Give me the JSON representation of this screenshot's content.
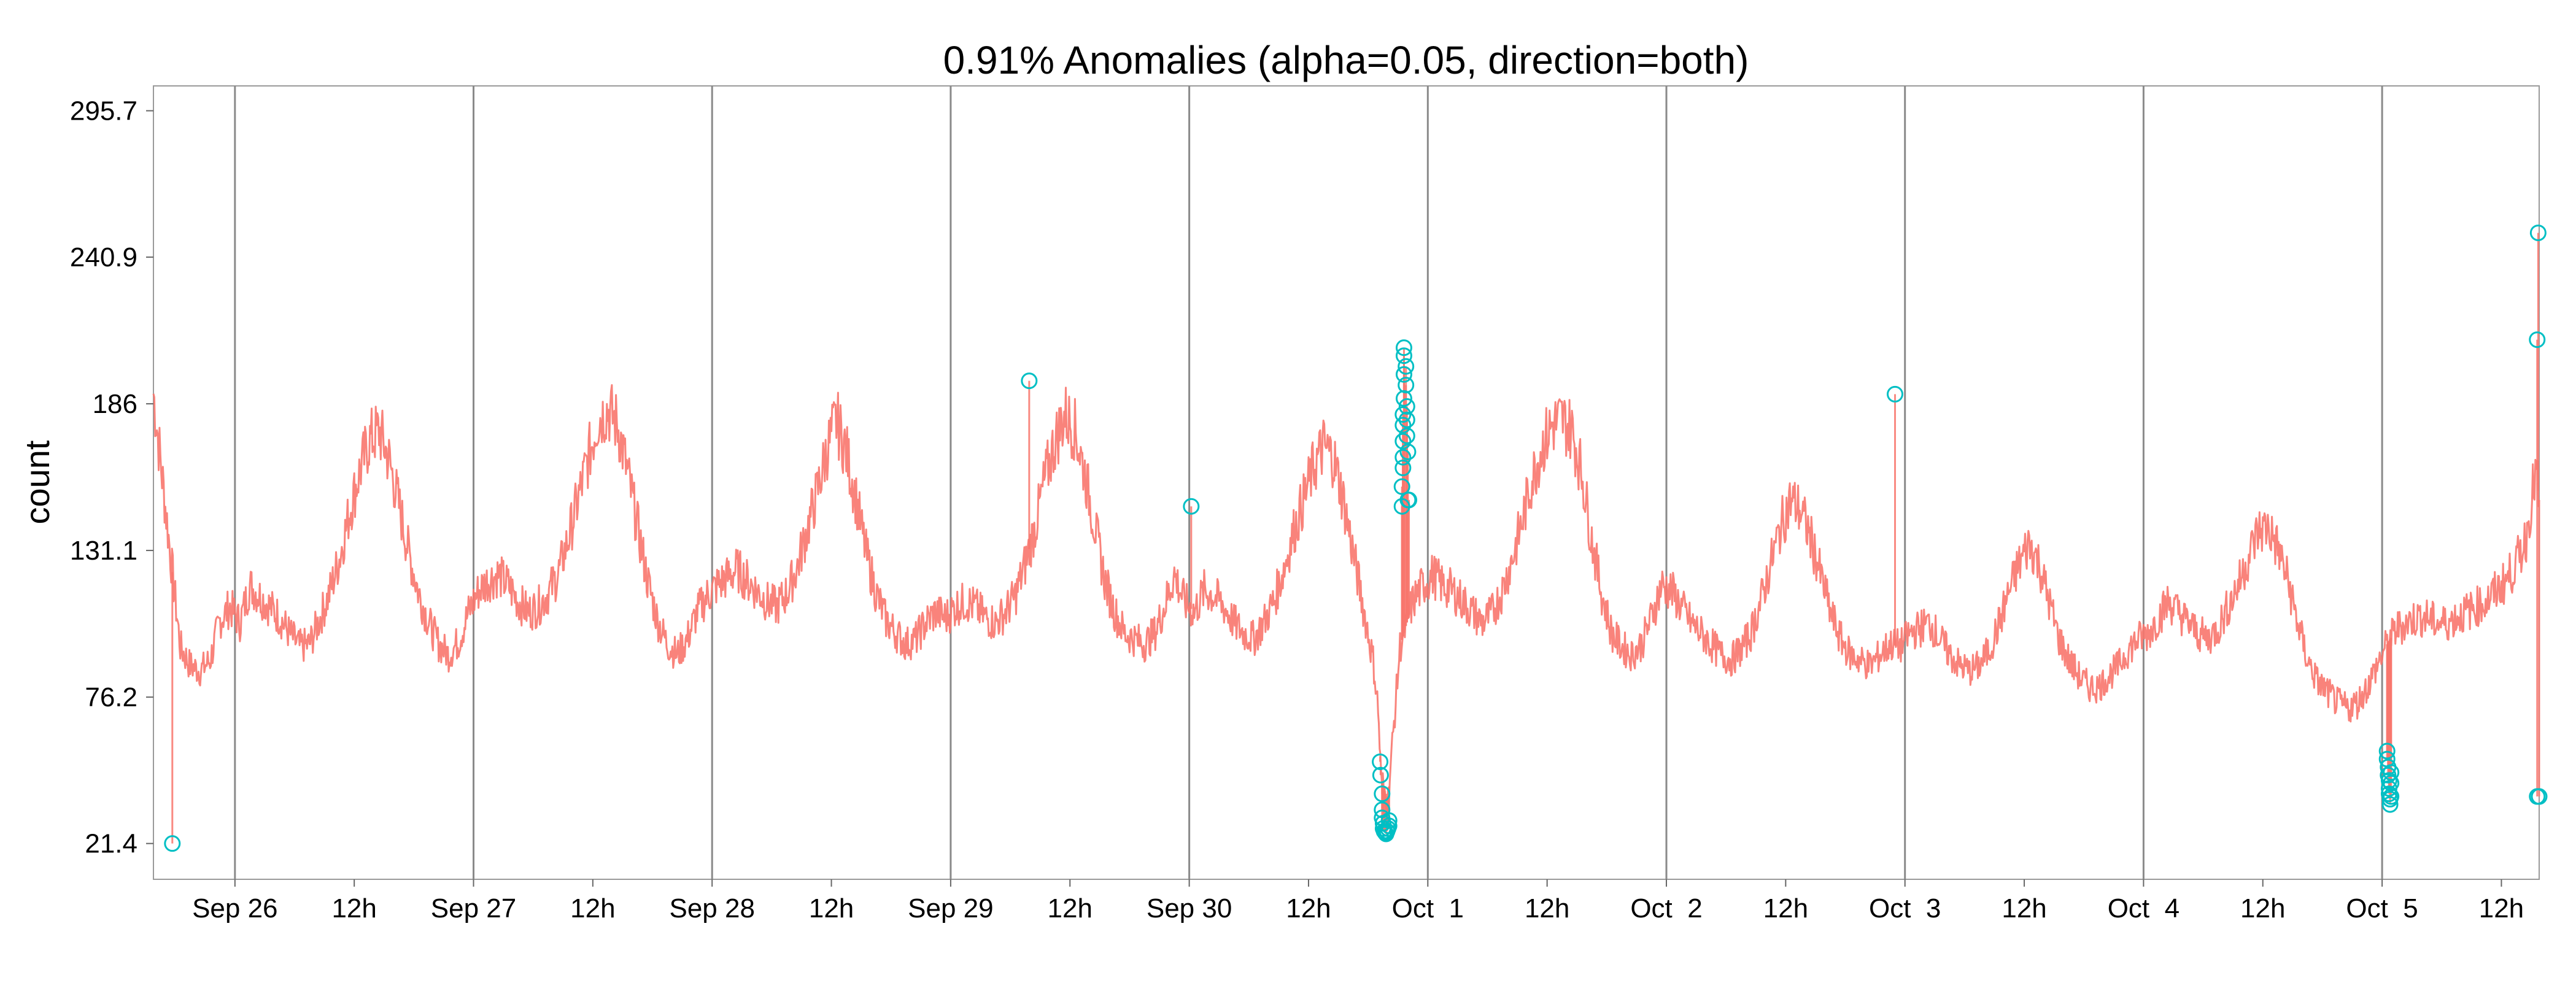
{
  "chart_data": {
    "type": "line",
    "title": "0.91% Anomalies (alpha=0.05, direction=both)",
    "xlabel": "",
    "ylabel": "count",
    "x_start": "Sep 25 15:50",
    "x_end": "Oct 5 15:00",
    "xlim_hours": [
      -8.2,
      231.8
    ],
    "ylim": [
      8,
      305
    ],
    "y_ticks": [
      21.4,
      76.2,
      131.1,
      186,
      240.9,
      295.7
    ],
    "y_tick_labels": [
      "21.4",
      "76.2",
      "131.1",
      "186",
      "240.9",
      "295.7"
    ],
    "x_ticks": [
      {
        "hour": 0,
        "label": "Sep 26",
        "major": true
      },
      {
        "hour": 12,
        "label": "12h",
        "major": false
      },
      {
        "hour": 24,
        "label": "Sep 27",
        "major": true
      },
      {
        "hour": 36,
        "label": "12h",
        "major": false
      },
      {
        "hour": 48,
        "label": "Sep 28",
        "major": true
      },
      {
        "hour": 60,
        "label": "12h",
        "major": false
      },
      {
        "hour": 72,
        "label": "Sep 29",
        "major": true
      },
      {
        "hour": 84,
        "label": "12h",
        "major": false
      },
      {
        "hour": 96,
        "label": "Sep 30",
        "major": true
      },
      {
        "hour": 108,
        "label": "12h",
        "major": false
      },
      {
        "hour": 120,
        "label": "Oct  1",
        "major": true
      },
      {
        "hour": 132,
        "label": "12h",
        "major": false
      },
      {
        "hour": 144,
        "label": "Oct  2",
        "major": true
      },
      {
        "hour": 156,
        "label": "12h",
        "major": false
      },
      {
        "hour": 168,
        "label": "Oct  3",
        "major": true
      },
      {
        "hour": 180,
        "label": "12h",
        "major": false
      },
      {
        "hour": 192,
        "label": "Oct  4",
        "major": true
      },
      {
        "hour": 204,
        "label": "12h",
        "major": false
      },
      {
        "hour": 216,
        "label": "Oct  5",
        "major": true
      },
      {
        "hour": 228,
        "label": "12h",
        "major": false
      }
    ],
    "grid": {
      "vertical_major_lines": true,
      "horizontal": false
    },
    "series": [
      {
        "role": "count",
        "color": "#F8766D",
        "points": [
          [
            -8.2,
            190
          ],
          [
            -7.5,
            165
          ],
          [
            -6.5,
            130
          ],
          [
            -5.5,
            95
          ],
          [
            -4.5,
            88
          ],
          [
            -3.5,
            86
          ],
          [
            -2.5,
            90
          ],
          [
            -1.5,
            105
          ],
          [
            -0.5,
            110
          ],
          [
            0.5,
            104
          ],
          [
            1.5,
            118
          ],
          [
            2.5,
            114
          ],
          [
            3.5,
            110
          ],
          [
            4.5,
            106
          ],
          [
            5.5,
            100
          ],
          [
            6.5,
            95
          ],
          [
            7.5,
            96
          ],
          [
            8.5,
            105
          ],
          [
            9.5,
            115
          ],
          [
            10.5,
            128
          ],
          [
            11.5,
            145
          ],
          [
            12.5,
            160
          ],
          [
            13.5,
            172
          ],
          [
            14.5,
            176
          ],
          [
            15.5,
            165
          ],
          [
            16.5,
            148
          ],
          [
            17.5,
            130
          ],
          [
            18.5,
            115
          ],
          [
            19.5,
            104
          ],
          [
            20.5,
            96
          ],
          [
            21.5,
            92
          ],
          [
            22.5,
            97
          ],
          [
            23.5,
            108
          ],
          [
            24.5,
            116
          ],
          [
            25.5,
            120
          ],
          [
            26.5,
            122
          ],
          [
            27.5,
            118
          ],
          [
            28.5,
            112
          ],
          [
            29.5,
            108
          ],
          [
            30.5,
            110
          ],
          [
            31.5,
            115
          ],
          [
            32.5,
            122
          ],
          [
            33.5,
            135
          ],
          [
            34.5,
            150
          ],
          [
            35.5,
            165
          ],
          [
            36.5,
            180
          ],
          [
            37.5,
            184
          ],
          [
            38.5,
            178
          ],
          [
            39.5,
            160
          ],
          [
            40.5,
            140
          ],
          [
            41.5,
            120
          ],
          [
            42.5,
            105
          ],
          [
            43.5,
            96
          ],
          [
            44.5,
            92
          ],
          [
            45.5,
            98
          ],
          [
            46.5,
            108
          ],
          [
            47.5,
            114
          ],
          [
            48.5,
            118
          ],
          [
            49.5,
            121
          ],
          [
            50.5,
            124
          ],
          [
            51.5,
            120
          ],
          [
            52.5,
            116
          ],
          [
            53.5,
            112
          ],
          [
            54.5,
            110
          ],
          [
            55.5,
            115
          ],
          [
            56.5,
            124
          ],
          [
            57.5,
            138
          ],
          [
            58.5,
            152
          ],
          [
            59.5,
            168
          ],
          [
            60.5,
            180
          ],
          [
            61.5,
            168
          ],
          [
            62.5,
            150
          ],
          [
            63.5,
            130
          ],
          [
            64.5,
            115
          ],
          [
            65.5,
            105
          ],
          [
            66.5,
            100
          ],
          [
            67.5,
            96
          ],
          [
            68.5,
            98
          ],
          [
            69.5,
            104
          ],
          [
            70.5,
            108
          ],
          [
            71.5,
            106
          ],
          [
            72.5,
            110
          ],
          [
            73.5,
            112
          ],
          [
            74.5,
            110
          ],
          [
            75.5,
            106
          ],
          [
            76.5,
            104
          ],
          [
            77.5,
            108
          ],
          [
            78.5,
            114
          ],
          [
            79.5,
            126
          ],
          [
            80.5,
            140
          ],
          [
            81.5,
            158
          ],
          [
            82.5,
            172
          ],
          [
            83.5,
            182
          ],
          [
            84.5,
            176
          ],
          [
            85.5,
            160
          ],
          [
            86.5,
            140
          ],
          [
            87.5,
            120
          ],
          [
            88.5,
            108
          ],
          [
            89.5,
            100
          ],
          [
            90.5,
            98
          ],
          [
            91.5,
            96
          ],
          [
            92.5,
            100
          ],
          [
            93.5,
            110
          ],
          [
            94.5,
            122
          ],
          [
            95.5,
            112
          ],
          [
            96.5,
            108
          ],
          [
            97.5,
            116
          ],
          [
            98.5,
            114
          ],
          [
            99.5,
            110
          ],
          [
            100.5,
            104
          ],
          [
            101.5,
            100
          ],
          [
            102.5,
            98
          ],
          [
            103.5,
            104
          ],
          [
            104.5,
            112
          ],
          [
            105.5,
            124
          ],
          [
            106.5,
            138
          ],
          [
            107.5,
            150
          ],
          [
            108.5,
            162
          ],
          [
            109.5,
            170
          ],
          [
            110.5,
            166
          ],
          [
            111.5,
            150
          ],
          [
            112.5,
            130
          ],
          [
            113.5,
            110
          ],
          [
            114.5,
            90
          ],
          [
            115.0,
            72
          ],
          [
            115.3,
            45
          ],
          [
            116.0,
            38
          ],
          [
            117.2,
            95
          ],
          [
            118.5,
            112
          ],
          [
            119.5,
            118
          ],
          [
            120.5,
            122
          ],
          [
            121.5,
            118
          ],
          [
            122.5,
            116
          ],
          [
            123.5,
            112
          ],
          [
            124.5,
            108
          ],
          [
            125.5,
            104
          ],
          [
            126.5,
            108
          ],
          [
            127.5,
            116
          ],
          [
            128.5,
            128
          ],
          [
            129.5,
            142
          ],
          [
            130.5,
            158
          ],
          [
            131.5,
            170
          ],
          [
            132.5,
            178
          ],
          [
            133.5,
            180
          ],
          [
            134.5,
            176
          ],
          [
            135.5,
            160
          ],
          [
            136.5,
            135
          ],
          [
            137.5,
            115
          ],
          [
            138.5,
            100
          ],
          [
            139.5,
            95
          ],
          [
            140.5,
            92
          ],
          [
            141.5,
            96
          ],
          [
            142.5,
            106
          ],
          [
            143.5,
            118
          ],
          [
            144.5,
            116
          ],
          [
            145.5,
            110
          ],
          [
            146.5,
            104
          ],
          [
            147.5,
            100
          ],
          [
            148.5,
            96
          ],
          [
            149.5,
            92
          ],
          [
            150.5,
            90
          ],
          [
            151.5,
            94
          ],
          [
            152.5,
            100
          ],
          [
            153.5,
            112
          ],
          [
            154.5,
            126
          ],
          [
            155.5,
            140
          ],
          [
            156.5,
            150
          ],
          [
            157.5,
            146
          ],
          [
            158.5,
            136
          ],
          [
            159.5,
            122
          ],
          [
            160.5,
            108
          ],
          [
            161.5,
            98
          ],
          [
            162.5,
            92
          ],
          [
            163.5,
            90
          ],
          [
            164.5,
            88
          ],
          [
            165.5,
            92
          ],
          [
            166.5,
            96
          ],
          [
            167.5,
            95
          ],
          [
            168.5,
            100
          ],
          [
            169.5,
            102
          ],
          [
            170.5,
            104
          ],
          [
            171.5,
            98
          ],
          [
            172.5,
            92
          ],
          [
            173.5,
            88
          ],
          [
            174.5,
            86
          ],
          [
            175.5,
            88
          ],
          [
            176.5,
            94
          ],
          [
            177.5,
            104
          ],
          [
            178.5,
            116
          ],
          [
            179.5,
            126
          ],
          [
            180.5,
            134
          ],
          [
            181.5,
            126
          ],
          [
            182.5,
            112
          ],
          [
            183.5,
            98
          ],
          [
            184.5,
            90
          ],
          [
            185.5,
            84
          ],
          [
            186.5,
            80
          ],
          [
            187.5,
            80
          ],
          [
            188.5,
            84
          ],
          [
            189.5,
            88
          ],
          [
            190.5,
            94
          ],
          [
            191.5,
            98
          ],
          [
            192.5,
            100
          ],
          [
            193.5,
            106
          ],
          [
            194.5,
            112
          ],
          [
            195.5,
            108
          ],
          [
            196.5,
            104
          ],
          [
            197.5,
            100
          ],
          [
            198.5,
            98
          ],
          [
            199.5,
            102
          ],
          [
            200.5,
            110
          ],
          [
            201.5,
            118
          ],
          [
            202.5,
            128
          ],
          [
            203.5,
            138
          ],
          [
            204.5,
            140
          ],
          [
            205.5,
            132
          ],
          [
            206.5,
            120
          ],
          [
            207.5,
            104
          ],
          [
            208.5,
            90
          ],
          [
            209.5,
            82
          ],
          [
            210.5,
            78
          ],
          [
            211.5,
            74
          ],
          [
            212.5,
            72
          ],
          [
            213.5,
            74
          ],
          [
            214.5,
            80
          ],
          [
            215.5,
            88
          ],
          [
            216.5,
            96
          ],
          [
            217.5,
            102
          ],
          [
            218.5,
            104
          ],
          [
            219.5,
            106
          ],
          [
            220.5,
            106
          ],
          [
            221.5,
            104
          ],
          [
            222.5,
            104
          ],
          [
            223.5,
            106
          ],
          [
            224.5,
            108
          ],
          [
            225.5,
            110
          ],
          [
            226.5,
            112
          ],
          [
            227.5,
            116
          ],
          [
            228.5,
            120
          ],
          [
            229.5,
            126
          ],
          [
            230.5,
            136
          ],
          [
            231.0,
            150
          ],
          [
            231.5,
            160
          ],
          [
            231.8,
            150
          ]
        ]
      }
    ],
    "anomalies": {
      "color": "#00BFC4",
      "points": [
        [
          -6.3,
          21.4
        ],
        [
          79.9,
          194.6
        ],
        [
          96.2,
          147.6
        ],
        [
          115.2,
          52
        ],
        [
          115.25,
          47
        ],
        [
          115.4,
          40
        ],
        [
          115.4,
          34
        ],
        [
          115.4,
          31
        ],
        [
          115.5,
          29
        ],
        [
          115.5,
          27
        ],
        [
          115.6,
          26
        ],
        [
          115.7,
          25.5
        ],
        [
          115.8,
          25
        ],
        [
          115.9,
          26
        ],
        [
          116.0,
          27
        ],
        [
          116.1,
          28
        ],
        [
          116.1,
          30
        ],
        [
          117.4,
          147.6
        ],
        [
          117.4,
          155
        ],
        [
          117.5,
          162
        ],
        [
          117.5,
          166
        ],
        [
          117.5,
          172
        ],
        [
          117.5,
          178
        ],
        [
          117.5,
          182
        ],
        [
          117.6,
          188
        ],
        [
          117.6,
          197
        ],
        [
          117.6,
          204
        ],
        [
          117.6,
          207
        ],
        [
          117.8,
          200
        ],
        [
          117.8,
          193
        ],
        [
          117.9,
          185
        ],
        [
          117.9,
          180
        ],
        [
          117.9,
          174
        ],
        [
          118.0,
          168
        ],
        [
          118.0,
          150
        ],
        [
          118.1,
          150
        ],
        [
          167.0,
          189.6
        ],
        [
          216.5,
          56
        ],
        [
          216.5,
          53
        ],
        [
          216.6,
          50
        ],
        [
          216.6,
          47
        ],
        [
          216.7,
          45
        ],
        [
          216.7,
          42
        ],
        [
          216.7,
          40
        ],
        [
          216.8,
          38
        ],
        [
          216.8,
          36
        ],
        [
          216.9,
          48
        ],
        [
          216.9,
          44
        ],
        [
          216.9,
          39
        ],
        [
          231.6,
          210
        ],
        [
          231.7,
          250
        ],
        [
          231.6,
          39
        ],
        [
          231.8,
          39
        ]
      ]
    }
  }
}
